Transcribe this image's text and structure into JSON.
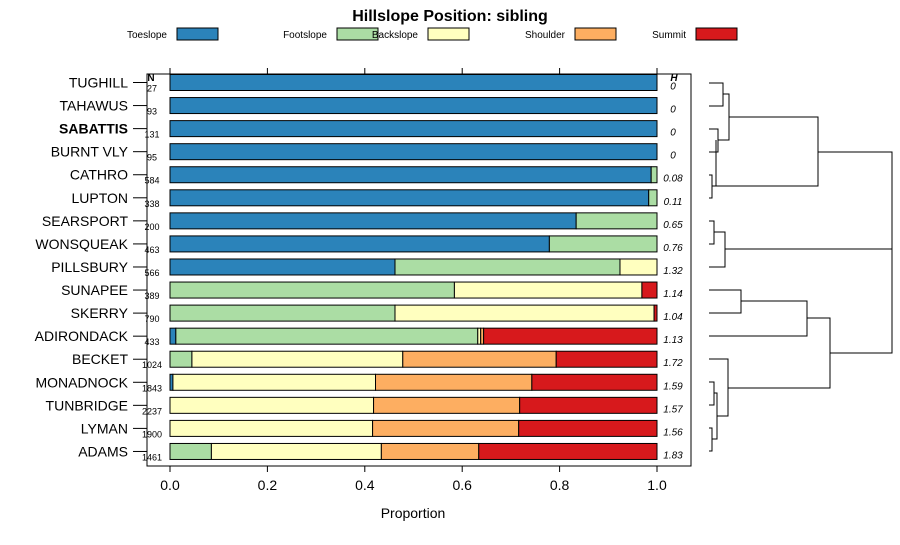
{
  "chart_data": {
    "type": "bar",
    "stacked": true,
    "orientation": "horizontal",
    "title": "Hillslope Position: sibling",
    "xlabel": "Proportion",
    "xlim": [
      0,
      1
    ],
    "x_ticks": [
      "0.0",
      "0.2",
      "0.4",
      "0.6",
      "0.8",
      "1.0"
    ],
    "legend_placement": "top",
    "n_header": "N",
    "h_header": "H",
    "highlighted_category": "SABATTIS",
    "legend": [
      {
        "name": "Toeslope",
        "color": "#2b83ba"
      },
      {
        "name": "Footslope",
        "color": "#abdda4"
      },
      {
        "name": "Backslope",
        "color": "#ffffbf"
      },
      {
        "name": "Shoulder",
        "color": "#fdae61"
      },
      {
        "name": "Summit",
        "color": "#d7191c"
      }
    ],
    "categories": [
      "TUGHILL",
      "TAHAWUS",
      "SABATTIS",
      "BURNT VLY",
      "CATHRO",
      "LUPTON",
      "SEARSPORT",
      "WONSQUEAK",
      "PILLSBURY",
      "SUNAPEE",
      "SKERRY",
      "ADIRONDACK",
      "BECKET",
      "MONADNOCK",
      "TUNBRIDGE",
      "LYMAN",
      "ADAMS"
    ],
    "n": [
      "27",
      "93",
      "131",
      "95",
      "584",
      "338",
      "200",
      "463",
      "566",
      "389",
      "790",
      "433",
      "1024",
      "1843",
      "2237",
      "1900",
      "1461"
    ],
    "h": [
      "0",
      "0",
      "0",
      "0",
      "0.08",
      "0.11",
      "0.65",
      "0.76",
      "1.32",
      "1.14",
      "1.04",
      "1.13",
      "1.72",
      "1.59",
      "1.57",
      "1.56",
      "1.83"
    ],
    "series": [
      {
        "name": "Toeslope",
        "values": [
          1.0,
          1.0,
          1.0,
          1.0,
          0.988,
          0.983,
          0.834,
          0.779,
          0.462,
          0.0,
          0.0,
          0.012,
          0.0,
          0.006,
          0.0,
          0.0,
          0.0
        ]
      },
      {
        "name": "Footslope",
        "values": [
          0.0,
          0.0,
          0.0,
          0.0,
          0.012,
          0.017,
          0.166,
          0.221,
          0.462,
          0.584,
          0.462,
          0.62,
          0.045,
          0.0,
          0.0,
          0.0,
          0.085
        ]
      },
      {
        "name": "Backslope",
        "values": [
          0.0,
          0.0,
          0.0,
          0.0,
          0.0,
          0.0,
          0.0,
          0.0,
          0.076,
          0.385,
          0.532,
          0.006,
          0.433,
          0.416,
          0.418,
          0.416,
          0.349
        ]
      },
      {
        "name": "Shoulder",
        "values": [
          0.0,
          0.0,
          0.0,
          0.0,
          0.0,
          0.0,
          0.0,
          0.0,
          0.0,
          0.0,
          0.0,
          0.006,
          0.315,
          0.321,
          0.3,
          0.3,
          0.2
        ]
      },
      {
        "name": "Summit",
        "values": [
          0.0,
          0.0,
          0.0,
          0.0,
          0.0,
          0.0,
          0.0,
          0.0,
          0.0,
          0.031,
          0.006,
          0.356,
          0.207,
          0.257,
          0.282,
          0.284,
          0.366
        ]
      }
    ]
  }
}
